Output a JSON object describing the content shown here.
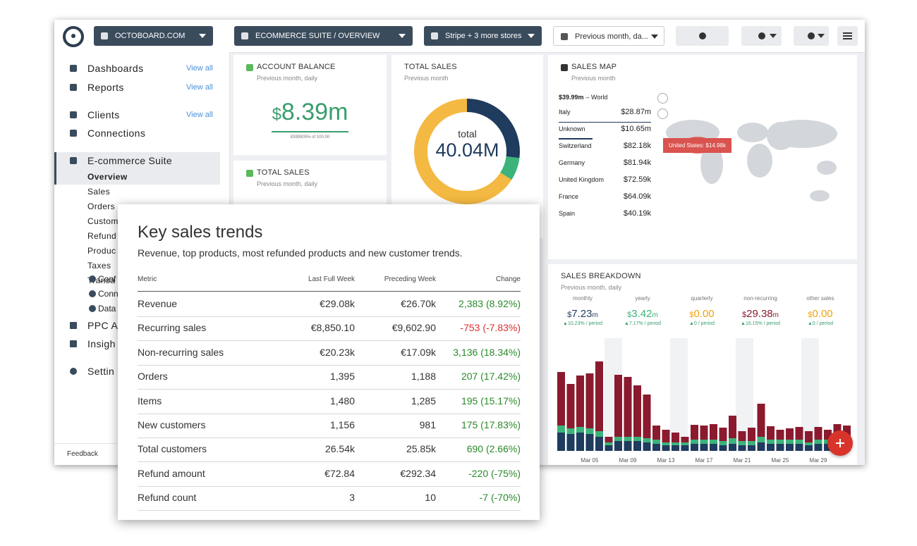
{
  "topbar": {
    "org": "OCTOBOARD.COM",
    "dashboard": "ECOMMERCE SUITE / OVERVIEW",
    "stores": "Stripe + 3 more stores",
    "period": "Previous month, da..."
  },
  "sidebar": {
    "items": [
      {
        "label": "Dashboards",
        "link": "View all"
      },
      {
        "label": "Reports",
        "link": "View all"
      },
      {
        "label": "Clients",
        "link": "View all"
      },
      {
        "label": "Connections"
      }
    ],
    "suite": "E-commerce Suite",
    "suite_items": [
      "Overview",
      "Sales",
      "Orders",
      "Custom",
      "Refund",
      "Produc",
      "Taxes",
      "Transa"
    ],
    "tools": [
      "Conf",
      "Conn",
      "Data"
    ],
    "more": [
      "PPC A",
      "Insigh"
    ],
    "settings": "Settin",
    "feedback": "Feedback"
  },
  "account_balance": {
    "title": "ACCOUNT BALANCE",
    "subtitle": "Previous month, daily",
    "currency": "$",
    "value": "8.39m",
    "note": "8399905% of 100.00"
  },
  "total_sales_small": {
    "title": "TOTAL SALES",
    "subtitle": "Previous month, daily"
  },
  "total_sales": {
    "title": "TOTAL SALES",
    "subtitle": "Previous month",
    "label": "total",
    "value": "40.04M"
  },
  "sales_map": {
    "title": "SALES MAP",
    "subtitle": "Previous month",
    "world_value": "$39.99m",
    "world_label": "– World",
    "rows": [
      [
        "Italy",
        "$28.87m"
      ],
      [
        "Unknown",
        "$10.65m"
      ],
      [
        "Switzerland",
        "$82.18k"
      ],
      [
        "Germany",
        "$81.94k"
      ],
      [
        "United Kingdom",
        "$72.59k"
      ],
      [
        "France",
        "$64.09k"
      ],
      [
        "Spain",
        "$40.19k"
      ]
    ],
    "tooltip": "United States: $14.98k"
  },
  "sales_breakdown": {
    "title": "SALES BREAKDOWN",
    "subtitle": "Previous month, daily",
    "metrics": [
      {
        "label": "monthly",
        "currency": "$",
        "value": "7.23",
        "suffix": "m",
        "delta": "▲10.23% / period",
        "color": "#1f3b5e"
      },
      {
        "label": "yearly",
        "currency": "$",
        "value": "3.42",
        "suffix": "m",
        "delta": "▲7.17% / period",
        "color": "#3cb37a"
      },
      {
        "label": "quarterly",
        "currency": "$",
        "value": "0.00",
        "delta": "▲0 / period",
        "color": "#f0a30a"
      },
      {
        "label": "non-recurring",
        "currency": "$",
        "value": "29.38",
        "suffix": "m",
        "delta": "▲16.15% / period",
        "color": "#8b1a2e"
      },
      {
        "label": "other sales",
        "currency": "$",
        "value": "0.00",
        "delta": "▲0 / period",
        "color": "#f0a30a"
      }
    ]
  },
  "key_sales_trends": {
    "title": "Key sales trends",
    "subtitle": "Revenue, top products, most refunded products and new customer trends.",
    "columns": [
      "Metric",
      "Last Full Week",
      "Preceding Week",
      "Change"
    ],
    "rows": [
      {
        "cells": [
          "Revenue",
          "€29.08k",
          "€26.70k",
          "2,383 (8.92%)"
        ],
        "change_color": "#2a8a2a"
      },
      {
        "cells": [
          "Recurring sales",
          "€8,850.10",
          "€9,602.90",
          "-753 (-7.83%)"
        ],
        "change_color": "#d8312f"
      },
      {
        "cells": [
          "Non-recurring sales",
          "€20.23k",
          "€17.09k",
          "3,136 (18.34%)"
        ],
        "change_color": "#2a8a2a"
      },
      {
        "cells": [
          "Orders",
          "1,395",
          "1,188",
          "207 (17.42%)"
        ],
        "change_color": "#2a8a2a"
      },
      {
        "cells": [
          "Items",
          "1,480",
          "1,285",
          "195 (15.17%)"
        ],
        "change_color": "#2a8a2a"
      },
      {
        "cells": [
          "New customers",
          "1,156",
          "981",
          "175 (17.83%)"
        ],
        "change_color": "#2a8a2a"
      },
      {
        "cells": [
          "Total customers",
          "26.54k",
          "25.85k",
          "690 (2.66%)"
        ],
        "change_color": "#2a8a2a"
      },
      {
        "cells": [
          "Refund amount",
          "€72.84",
          "€292.34",
          "-220 (-75%)"
        ],
        "change_color": "#2a8a2a"
      },
      {
        "cells": [
          "Refund count",
          "3",
          "10",
          "-7 (-70%)"
        ],
        "change_color": "#2a8a2a"
      }
    ]
  },
  "chart_data": [
    {
      "type": "pie",
      "donut": true,
      "values": [
        27,
        7,
        66
      ],
      "colors": [
        "#1f3b5e",
        "#3cb37a",
        "#f4b942"
      ]
    },
    {
      "type": "bar",
      "stacked": true,
      "categories": [
        null,
        null,
        null,
        "Mar 05",
        null,
        null,
        null,
        "Mar 09",
        null,
        null,
        null,
        "Mar 13",
        null,
        null,
        null,
        "Mar 17",
        null,
        null,
        null,
        "Mar 21",
        null,
        null,
        null,
        "Mar 25",
        null,
        null,
        null,
        "Mar 29",
        null,
        null,
        null
      ],
      "series": [
        {
          "color": "#1f3b5e",
          "values": [
            26,
            24,
            26,
            24,
            20,
            8,
            14,
            14,
            14,
            12,
            10,
            8,
            8,
            8,
            10,
            10,
            10,
            8,
            10,
            8,
            8,
            12,
            10,
            10,
            10,
            10,
            8,
            10,
            10,
            14,
            12
          ]
        },
        {
          "color": "#3cb37a",
          "values": [
            10,
            8,
            8,
            8,
            8,
            4,
            6,
            6,
            6,
            6,
            6,
            4,
            4,
            4,
            6,
            6,
            6,
            6,
            8,
            6,
            6,
            8,
            6,
            6,
            6,
            6,
            4,
            6,
            6,
            8,
            8
          ]
        },
        {
          "color": "#8b1a2e",
          "values": [
            76,
            63,
            73,
            78,
            99,
            8,
            88,
            85,
            73,
            62,
            20,
            18,
            14,
            8,
            21,
            20,
            22,
            19,
            32,
            14,
            19,
            47,
            19,
            14,
            16,
            18,
            16,
            18,
            14,
            16,
            16
          ]
        }
      ]
    }
  ]
}
